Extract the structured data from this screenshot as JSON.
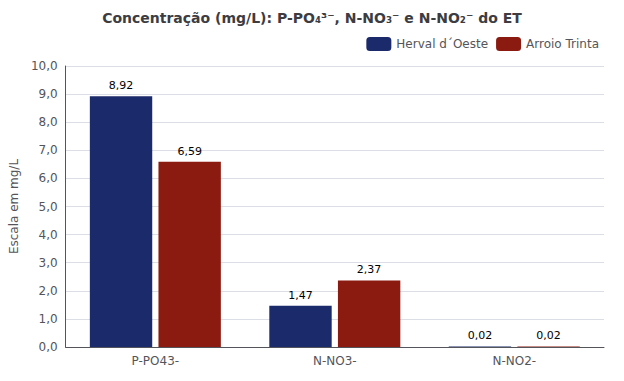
{
  "chart_data": {
    "type": "bar",
    "title": "Concentração (mg/L): P-PO₄³⁻, N-NO₃⁻ e N-NO₂⁻ do ET",
    "ylabel": "Escala em mg/L",
    "categories": [
      "P-PO43-",
      "N-NO3-",
      "N-NO2-"
    ],
    "series": [
      {
        "name": "Herval d´Oeste",
        "color": "#1B2A6B",
        "values": [
          8.92,
          1.47,
          0.02
        ],
        "value_labels": [
          "8,92",
          "1,47",
          "0,02"
        ]
      },
      {
        "name": "Arroio Trinta",
        "color": "#8B1A10",
        "values": [
          6.59,
          2.37,
          0.02
        ],
        "value_labels": [
          "6,59",
          "2,37",
          "0,02"
        ]
      }
    ],
    "ylim": [
      0,
      10.0
    ],
    "yticks": [
      {
        "value": 0.0,
        "label": "0,0"
      },
      {
        "value": 1.0,
        "label": "1,0"
      },
      {
        "value": 2.0,
        "label": "2,0"
      },
      {
        "value": 3.0,
        "label": "3,0"
      },
      {
        "value": 4.0,
        "label": "4,0"
      },
      {
        "value": 5.0,
        "label": "5,0"
      },
      {
        "value": 6.0,
        "label": "6,0"
      },
      {
        "value": 7.0,
        "label": "7,0"
      },
      {
        "value": 8.0,
        "label": "8,0"
      },
      {
        "value": 9.0,
        "label": "9,0"
      },
      {
        "value": 10.0,
        "label": "10,0"
      }
    ],
    "grid": true,
    "legend": "upper right",
    "data_labels": true
  }
}
